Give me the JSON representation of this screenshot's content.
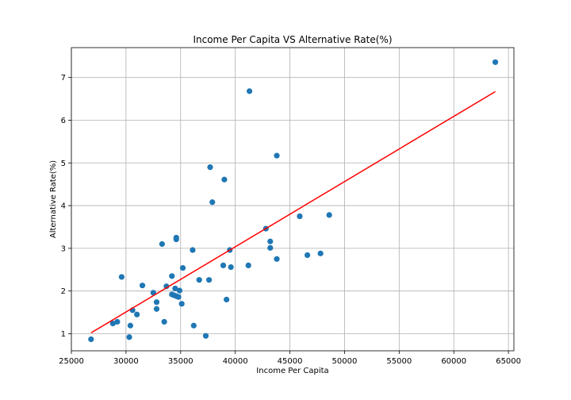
{
  "chart_data": {
    "type": "scatter",
    "title": "Income Per Capita VS Alternative Rate(%)",
    "xlabel": "Income Per Capita",
    "ylabel": "Alternative Rate(%)",
    "xlim": [
      25000,
      65500
    ],
    "ylim": [
      0.6,
      7.7
    ],
    "xticks": [
      25000,
      30000,
      35000,
      40000,
      45000,
      50000,
      55000,
      60000,
      65000
    ],
    "yticks": [
      1,
      2,
      3,
      4,
      5,
      6,
      7
    ],
    "grid": true,
    "colors": {
      "points": "#1f77b4",
      "fit": "#ff0000"
    },
    "series": [
      {
        "kind": "scatter",
        "points": [
          [
            26800,
            0.87
          ],
          [
            28800,
            1.24
          ],
          [
            29200,
            1.28
          ],
          [
            29600,
            2.33
          ],
          [
            30300,
            0.92
          ],
          [
            30400,
            1.19
          ],
          [
            30600,
            1.55
          ],
          [
            31000,
            1.45
          ],
          [
            31500,
            2.13
          ],
          [
            32500,
            1.96
          ],
          [
            32800,
            1.74
          ],
          [
            32800,
            1.58
          ],
          [
            33300,
            3.1
          ],
          [
            33500,
            1.28
          ],
          [
            33700,
            2.11
          ],
          [
            34200,
            2.35
          ],
          [
            34200,
            1.92
          ],
          [
            34400,
            1.9
          ],
          [
            34500,
            2.06
          ],
          [
            34600,
            1.88
          ],
          [
            34600,
            3.25
          ],
          [
            34600,
            3.21
          ],
          [
            34800,
            1.86
          ],
          [
            34900,
            2.01
          ],
          [
            35100,
            1.7
          ],
          [
            35200,
            2.54
          ],
          [
            36100,
            2.96
          ],
          [
            36200,
            1.19
          ],
          [
            36700,
            2.26
          ],
          [
            37300,
            0.95
          ],
          [
            37600,
            2.26
          ],
          [
            37700,
            4.9
          ],
          [
            37900,
            4.08
          ],
          [
            38900,
            2.6
          ],
          [
            39000,
            4.61
          ],
          [
            39200,
            1.8
          ],
          [
            39500,
            2.96
          ],
          [
            39600,
            2.56
          ],
          [
            41200,
            2.6
          ],
          [
            41300,
            6.68
          ],
          [
            42800,
            3.46
          ],
          [
            43200,
            3.16
          ],
          [
            43200,
            3.01
          ],
          [
            43800,
            5.17
          ],
          [
            43800,
            2.75
          ],
          [
            45900,
            3.75
          ],
          [
            46600,
            2.84
          ],
          [
            47800,
            2.88
          ],
          [
            48600,
            3.78
          ],
          [
            63800,
            7.36
          ]
        ]
      },
      {
        "kind": "line",
        "points": [
          [
            26800,
            1.02
          ],
          [
            63800,
            6.67
          ]
        ]
      }
    ]
  }
}
